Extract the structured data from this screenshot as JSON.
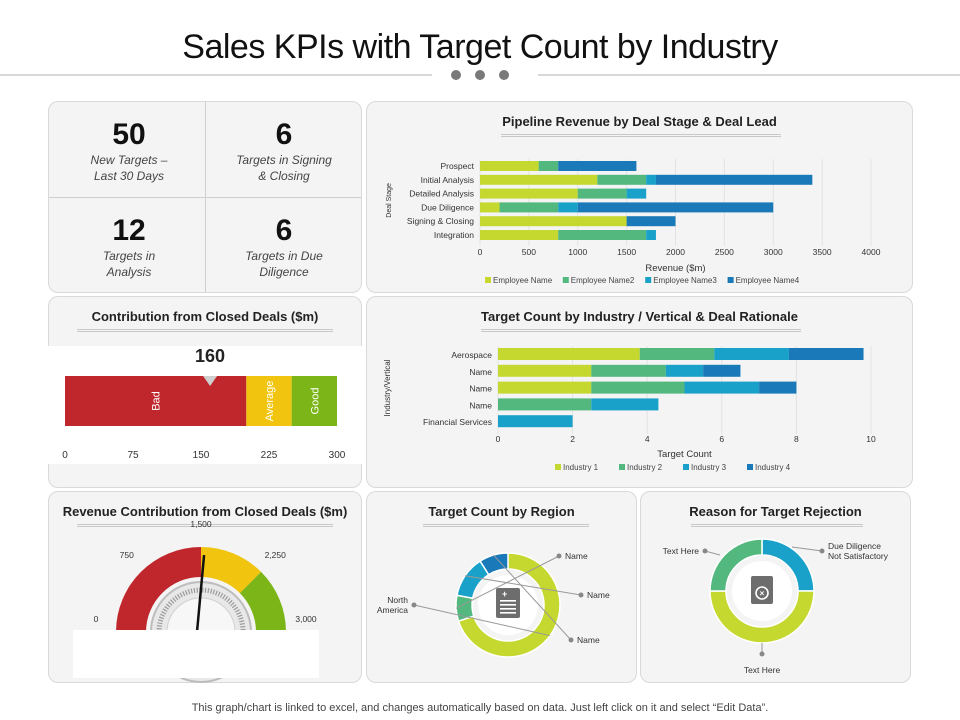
{
  "page": {
    "title": "Sales KPIs with Target Count by Industry",
    "footer": "This graph/chart is linked to excel, and changes automatically based on data. Just left click on it and select “Edit Data”."
  },
  "colors": {
    "lime": "#c5d82f",
    "green": "#52b87e",
    "teal": "#1aa1c9",
    "blue": "#1a79b8",
    "red": "#c0272d",
    "yellow": "#f1c40f",
    "leaf": "#7cb518"
  },
  "kpis": [
    {
      "value": "50",
      "label_line1": "New Targets –",
      "label_line2": "Last 30 Days"
    },
    {
      "value": "6",
      "label_line1": "Targets in Signing",
      "label_line2": "& Closing"
    },
    {
      "value": "12",
      "label_line1": "Targets in",
      "label_line2": "Analysis"
    },
    {
      "value": "6",
      "label_line1": "Targets in Due",
      "label_line2": "Diligence"
    }
  ],
  "chart_data": [
    {
      "type": "bar",
      "orientation": "horizontal",
      "stacked": true,
      "title": "Pipeline Revenue by Deal Stage & Deal Lead",
      "xlabel": "Revenue ($m)",
      "ylabel": "Deal Stage",
      "categories": [
        "Prospect",
        "Initial Analysis",
        "Detailed Analysis",
        "Due Diligence",
        "Signing & Closing",
        "Integration"
      ],
      "series": [
        {
          "name": "Employee Name",
          "values": [
            600,
            1200,
            1000,
            200,
            1500,
            800
          ]
        },
        {
          "name": "Employee Name2",
          "values": [
            200,
            500,
            500,
            600,
            0,
            900
          ]
        },
        {
          "name": "Employee Name3",
          "values": [
            0,
            100,
            200,
            200,
            0,
            100
          ]
        },
        {
          "name": "Employee Name4",
          "values": [
            800,
            1600,
            0,
            2000,
            500,
            0
          ]
        }
      ],
      "xlim": [
        0,
        4000
      ],
      "xticks": [
        "0",
        "500",
        "1000",
        "1500",
        "2000",
        "2500",
        "3000",
        "3500",
        "4000"
      ],
      "legend": "bottom"
    },
    {
      "type": "bar",
      "orientation": "horizontal",
      "title": "Contribution from Closed Deals ($m)",
      "value": 160,
      "value_label": "160",
      "bands": [
        {
          "label": "Bad",
          "from": 0,
          "to": 200
        },
        {
          "label": "Average",
          "from": 200,
          "to": 250
        },
        {
          "label": "Good",
          "from": 250,
          "to": 300
        }
      ],
      "xlim": [
        0,
        300
      ],
      "xticks": [
        "0",
        "75",
        "150",
        "225",
        "300"
      ]
    },
    {
      "type": "bar",
      "orientation": "horizontal",
      "stacked": true,
      "title": "Target Count by Industry / Vertical & Deal Rationale",
      "xlabel": "Target  Count",
      "ylabel": "Industry/Vertical",
      "categories": [
        "Aerospace",
        "Name",
        "Name",
        "Name",
        "Financial Services"
      ],
      "series": [
        {
          "name": "Industry 1",
          "values": [
            3.8,
            2.5,
            2.5,
            0,
            0
          ]
        },
        {
          "name": "Industry 2",
          "values": [
            2,
            2,
            2.5,
            2.5,
            0
          ]
        },
        {
          "name": "Industry 3",
          "values": [
            2,
            1,
            2,
            1.8,
            2
          ]
        },
        {
          "name": "Industry 4",
          "values": [
            2,
            1,
            1,
            0,
            0
          ]
        }
      ],
      "xlim": [
        0,
        10
      ],
      "xticks": [
        "0",
        "2",
        "4",
        "6",
        "8",
        "10"
      ],
      "legend": "bottom"
    },
    {
      "type": "pie",
      "variant": "gauge",
      "title": "Revenue Contribution from Closed Deals ($m)",
      "ticks": [
        "0",
        "750",
        "1,500",
        "2,250",
        "3,000"
      ],
      "range": [
        0,
        3000
      ],
      "needle_value": 1500,
      "bands": [
        {
          "from": 0,
          "to": 1500,
          "color": "#c0272d"
        },
        {
          "from": 1500,
          "to": 2250,
          "color": "#f1c40f"
        },
        {
          "from": 2250,
          "to": 3000,
          "color": "#7cb518"
        }
      ]
    },
    {
      "type": "pie",
      "variant": "donut",
      "title": "Target Count by Region",
      "slices": [
        {
          "label": "North America",
          "value": 70,
          "color": "#c5d82f"
        },
        {
          "label": "Name",
          "value": 8,
          "color": "#52b87e"
        },
        {
          "label": "Name",
          "value": 13,
          "color": "#1aa1c9"
        },
        {
          "label": "Name",
          "value": 9,
          "color": "#1a79b8"
        }
      ]
    },
    {
      "type": "pie",
      "variant": "donut",
      "title": "Reason for Target Rejection",
      "slices": [
        {
          "label": "Due Diligence Not Satisfactory",
          "value": 25,
          "color": "#1aa1c9"
        },
        {
          "label": "Text Here",
          "value": 50,
          "color": "#c5d82f"
        },
        {
          "label": "Text Here",
          "value": 25,
          "color": "#52b87e"
        }
      ]
    }
  ]
}
